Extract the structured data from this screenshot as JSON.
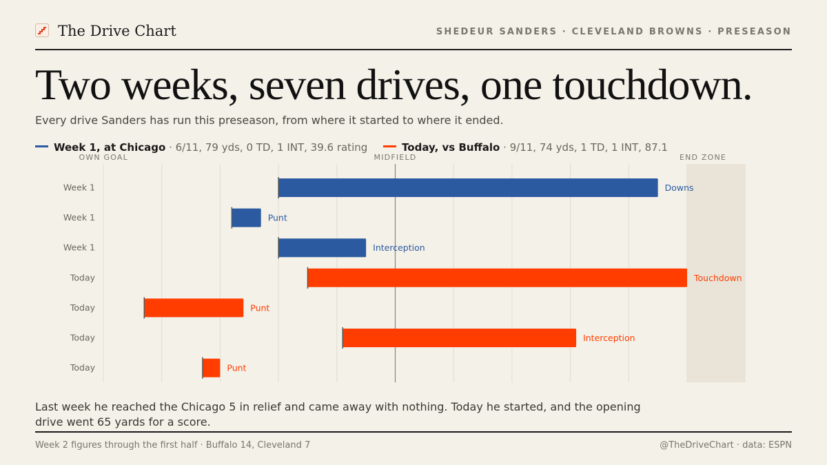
{
  "header": {
    "brand": "The Drive Chart",
    "kicker": "SHEDEUR SANDERS · CLEVELAND BROWNS · PRESEASON"
  },
  "title": "Two weeks, seven drives, one touchdown.",
  "subtitle": "Every drive Sanders has run this preseason, from where it started to where it ended.",
  "legend": [
    {
      "name": "Week 1, at Chicago",
      "stat": " · 6/11, 79 yds, 0 TD, 1 INT, 39.6 rating",
      "color": "#2b5aa0"
    },
    {
      "name": "Today, vs Buffalo",
      "stat": " · 9/11, 74 yds, 1 TD, 1 INT, 87.1",
      "color": "#ff3d00"
    }
  ],
  "chart_data": {
    "type": "bar",
    "orientation": "horizontal-range",
    "x_axis": {
      "min": 0,
      "max": 100,
      "unit": "yards from own goal"
    },
    "axis_labels": [
      "OWN GOAL",
      "MIDFIELD",
      "END ZONE"
    ],
    "end_zone": [
      100,
      110
    ],
    "grid": true,
    "series": [
      {
        "name": "Week 1, at Chicago",
        "color": "#2b5aa0"
      },
      {
        "name": "Today, vs Buffalo",
        "color": "#ff3d00"
      }
    ],
    "drives": [
      {
        "label": "Week 1",
        "series": 0,
        "start": 30,
        "end": 95,
        "result": "Downs"
      },
      {
        "label": "Week 1",
        "series": 0,
        "start": 22,
        "end": 27,
        "result": "Punt"
      },
      {
        "label": "Week 1",
        "series": 0,
        "start": 30,
        "end": 45,
        "result": "Interception"
      },
      {
        "label": "Today",
        "series": 1,
        "start": 35,
        "end": 100,
        "result": "Touchdown"
      },
      {
        "label": "Today",
        "series": 1,
        "start": 7,
        "end": 24,
        "result": "Punt"
      },
      {
        "label": "Today",
        "series": 1,
        "start": 41,
        "end": 81,
        "result": "Interception"
      },
      {
        "label": "Today",
        "series": 1,
        "start": 17,
        "end": 20,
        "result": "Punt"
      }
    ]
  },
  "caption": "Last week he reached the Chicago 5 in relief and came away with nothing. Today he started, and the opening drive went 65 yards for a score.",
  "footer": {
    "note": "Week 2 figures through the first half · Buffalo 14, Cleveland 7",
    "source": "@TheDriveChart · data: ESPN"
  }
}
